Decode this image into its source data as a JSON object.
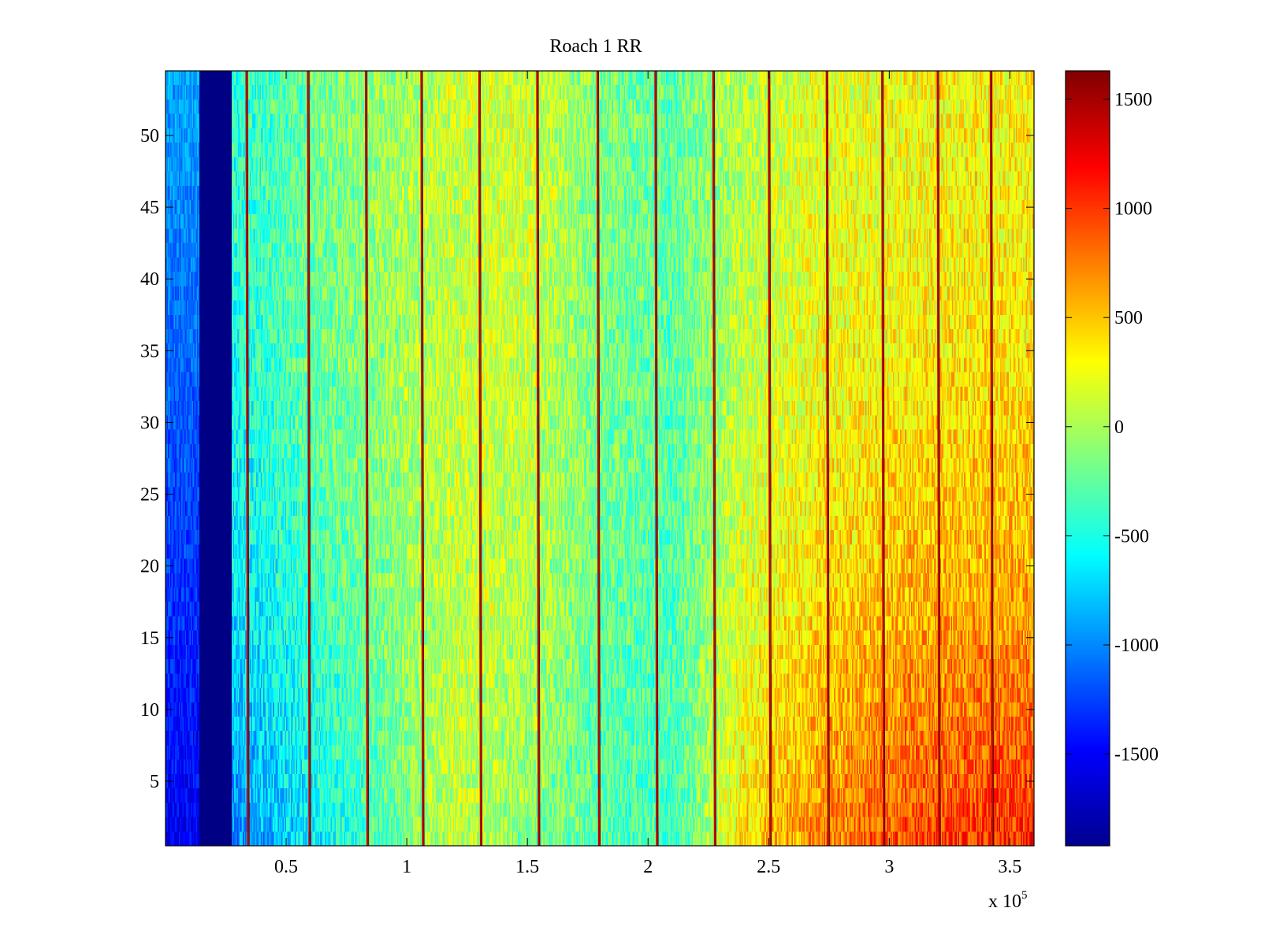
{
  "chart_data": {
    "type": "heatmap",
    "title": "Roach 1 RR",
    "xlabel": "",
    "ylabel": "",
    "x_multiplier": {
      "base": "x 10",
      "exponent": "5"
    },
    "xlim": [
      0,
      3.6
    ],
    "ylim": [
      0.5,
      54.5
    ],
    "x_ticks": [
      0.5,
      1,
      1.5,
      2,
      2.5,
      3,
      3.5
    ],
    "x_tick_labels": [
      "0.5",
      "1",
      "1.5",
      "2",
      "2.5",
      "3",
      "3.5"
    ],
    "y_ticks": [
      5,
      10,
      15,
      20,
      25,
      30,
      35,
      40,
      45,
      50
    ],
    "y_tick_labels": [
      "5",
      "10",
      "15",
      "20",
      "25",
      "30",
      "35",
      "40",
      "45",
      "50"
    ],
    "colormap": "jet",
    "colorbar": {
      "clim": [
        -1920,
        1630
      ],
      "ticks": [
        1500,
        1000,
        500,
        0,
        -500,
        -1000,
        -1500
      ],
      "tick_labels": [
        "1500",
        "1000",
        "500",
        "0",
        "-500",
        "-1000",
        "-1500"
      ]
    },
    "dark_band": {
      "x_start": 0.14,
      "x_end": 0.275,
      "value": -1900
    },
    "left_strip": {
      "x_start": 0,
      "x_end": 0.14,
      "value_top": -900,
      "value_bottom": -1500
    },
    "vertical_lines": {
      "x_positions": [
        0.335,
        0.59,
        0.83,
        1.06,
        1.3,
        1.54,
        1.79,
        2.03,
        2.27,
        2.5,
        2.74,
        2.97,
        3.2,
        3.42
      ],
      "value": 1400
    },
    "column_trend": {
      "x": [
        0.3,
        0.6,
        0.9,
        1.2,
        1.5,
        1.8,
        2.1,
        2.4,
        2.7,
        3.0,
        3.3,
        3.6
      ],
      "top_rows": [
        -450,
        -200,
        -50,
        100,
        150,
        -150,
        -250,
        50,
        200,
        250,
        300,
        300
      ],
      "bottom_rows": [
        -1000,
        -650,
        -300,
        100,
        -100,
        -300,
        -400,
        400,
        700,
        900,
        1000,
        1050
      ]
    }
  }
}
